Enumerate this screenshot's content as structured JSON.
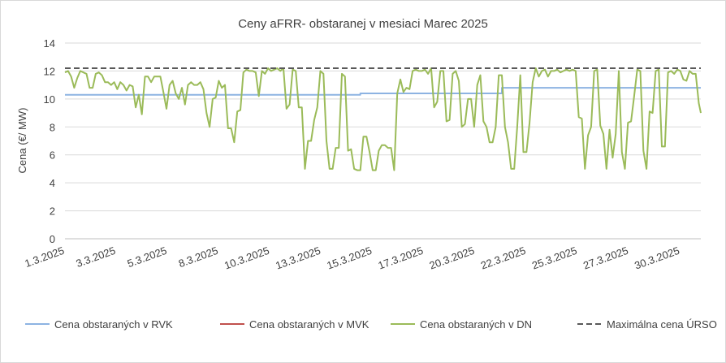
{
  "chart_data": {
    "type": "line",
    "title": "Ceny aFRR- obstaranej v mesiaci Marec 2025",
    "ylabel": "Cena (€/ MW)",
    "ylim": [
      0,
      14
    ],
    "yticks": [
      0,
      2,
      4,
      6,
      8,
      10,
      12,
      14
    ],
    "xlim": [
      1,
      32
    ],
    "xticks": [
      {
        "x": 1,
        "label": "1.3.2025"
      },
      {
        "x": 3.5,
        "label": "3.3.2025"
      },
      {
        "x": 6,
        "label": "5.3.2025"
      },
      {
        "x": 8.5,
        "label": "8.3.2025"
      },
      {
        "x": 11,
        "label": "10.3.2025"
      },
      {
        "x": 13.5,
        "label": "13.3.2025"
      },
      {
        "x": 16,
        "label": "15.3.2025"
      },
      {
        "x": 18.5,
        "label": "17.3.2025"
      },
      {
        "x": 21,
        "label": "20.3.2025"
      },
      {
        "x": 23.5,
        "label": "22.3.2025"
      },
      {
        "x": 26,
        "label": "25.3.2025"
      },
      {
        "x": 28.5,
        "label": "27.3.2025"
      },
      {
        "x": 31,
        "label": "30.3.2025"
      }
    ],
    "grid": true,
    "legend": "bottom",
    "series": [
      {
        "name": "Cena obstaraných v RVK",
        "color": "#8db3e2",
        "dash": false,
        "points": [
          [
            1,
            10.3
          ],
          [
            15.4,
            10.3
          ],
          [
            15.4,
            10.4
          ],
          [
            22.3,
            10.4
          ],
          [
            22.3,
            10.8
          ],
          [
            32,
            10.8
          ]
        ]
      },
      {
        "name": "Cena obstaraných v MVK",
        "color": "#c0504d",
        "dash": false,
        "points": []
      },
      {
        "name": "Cena obstaraných v DN",
        "color": "#9bbb59",
        "dash": false,
        "points": [
          [
            1,
            11.9
          ],
          [
            1.15,
            12.0
          ],
          [
            1.3,
            11.6
          ],
          [
            1.45,
            10.8
          ],
          [
            1.6,
            11.5
          ],
          [
            1.75,
            12.0
          ],
          [
            1.9,
            11.9
          ],
          [
            2.05,
            11.8
          ],
          [
            2.2,
            10.8
          ],
          [
            2.35,
            10.8
          ],
          [
            2.5,
            11.8
          ],
          [
            2.65,
            11.9
          ],
          [
            2.8,
            11.7
          ],
          [
            2.95,
            11.2
          ],
          [
            3.1,
            11.2
          ],
          [
            3.25,
            11.0
          ],
          [
            3.4,
            11.2
          ],
          [
            3.55,
            10.7
          ],
          [
            3.7,
            11.2
          ],
          [
            3.85,
            11.0
          ],
          [
            4.0,
            10.6
          ],
          [
            4.15,
            11.0
          ],
          [
            4.3,
            10.9
          ],
          [
            4.45,
            9.4
          ],
          [
            4.6,
            10.3
          ],
          [
            4.75,
            8.9
          ],
          [
            4.9,
            11.6
          ],
          [
            5.05,
            11.6
          ],
          [
            5.2,
            11.2
          ],
          [
            5.35,
            11.6
          ],
          [
            5.5,
            11.6
          ],
          [
            5.65,
            11.6
          ],
          [
            5.8,
            10.5
          ],
          [
            5.95,
            9.3
          ],
          [
            6.1,
            11.0
          ],
          [
            6.25,
            11.3
          ],
          [
            6.4,
            10.4
          ],
          [
            6.55,
            10.0
          ],
          [
            6.7,
            10.8
          ],
          [
            6.85,
            9.6
          ],
          [
            7.0,
            11.0
          ],
          [
            7.15,
            11.2
          ],
          [
            7.3,
            11.0
          ],
          [
            7.45,
            11.0
          ],
          [
            7.6,
            11.2
          ],
          [
            7.75,
            10.7
          ],
          [
            7.9,
            9.0
          ],
          [
            8.05,
            8.0
          ],
          [
            8.2,
            10.0
          ],
          [
            8.35,
            10.1
          ],
          [
            8.5,
            11.3
          ],
          [
            8.65,
            10.8
          ],
          [
            8.8,
            11.0
          ],
          [
            8.95,
            7.9
          ],
          [
            9.1,
            7.9
          ],
          [
            9.25,
            6.9
          ],
          [
            9.4,
            9.1
          ],
          [
            9.55,
            9.2
          ],
          [
            9.7,
            11.9
          ],
          [
            9.85,
            12.1
          ],
          [
            10.0,
            12.0
          ],
          [
            10.15,
            12.0
          ],
          [
            10.3,
            11.9
          ],
          [
            10.45,
            10.2
          ],
          [
            10.6,
            12.0
          ],
          [
            10.75,
            11.8
          ],
          [
            10.9,
            12.2
          ],
          [
            11.05,
            12.0
          ],
          [
            11.2,
            12.1
          ],
          [
            11.35,
            12.2
          ],
          [
            11.5,
            12.0
          ],
          [
            11.65,
            12.2
          ],
          [
            11.8,
            9.3
          ],
          [
            11.95,
            9.6
          ],
          [
            12.1,
            12.1
          ],
          [
            12.25,
            12.0
          ],
          [
            12.4,
            9.4
          ],
          [
            12.55,
            9.4
          ],
          [
            12.7,
            5.0
          ],
          [
            12.85,
            7.0
          ],
          [
            13.0,
            7.0
          ],
          [
            13.15,
            8.5
          ],
          [
            13.3,
            9.4
          ],
          [
            13.45,
            12.0
          ],
          [
            13.6,
            11.8
          ],
          [
            13.75,
            7.0
          ],
          [
            13.9,
            5.0
          ],
          [
            14.05,
            5.0
          ],
          [
            14.2,
            6.5
          ],
          [
            14.35,
            6.5
          ],
          [
            14.5,
            11.8
          ],
          [
            14.65,
            11.6
          ],
          [
            14.8,
            6.3
          ],
          [
            14.95,
            6.4
          ],
          [
            15.1,
            5.0
          ],
          [
            15.25,
            4.9
          ],
          [
            15.4,
            4.9
          ],
          [
            15.55,
            7.3
          ],
          [
            15.7,
            7.3
          ],
          [
            15.85,
            6.2
          ],
          [
            16.0,
            4.9
          ],
          [
            16.15,
            4.9
          ],
          [
            16.3,
            6.3
          ],
          [
            16.45,
            6.7
          ],
          [
            16.6,
            6.7
          ],
          [
            16.75,
            6.5
          ],
          [
            16.9,
            6.5
          ],
          [
            17.05,
            4.9
          ],
          [
            17.2,
            10.4
          ],
          [
            17.35,
            11.4
          ],
          [
            17.5,
            10.5
          ],
          [
            17.65,
            10.8
          ],
          [
            17.8,
            10.7
          ],
          [
            17.95,
            12.0
          ],
          [
            18.1,
            12.1
          ],
          [
            18.25,
            12.0
          ],
          [
            18.4,
            12.0
          ],
          [
            18.55,
            12.1
          ],
          [
            18.7,
            11.8
          ],
          [
            18.85,
            12.2
          ],
          [
            19.0,
            9.4
          ],
          [
            19.15,
            9.8
          ],
          [
            19.3,
            12.0
          ],
          [
            19.45,
            12.0
          ],
          [
            19.6,
            8.4
          ],
          [
            19.75,
            8.5
          ],
          [
            19.9,
            11.8
          ],
          [
            20.05,
            12.0
          ],
          [
            20.2,
            11.3
          ],
          [
            20.35,
            8.0
          ],
          [
            20.5,
            8.2
          ],
          [
            20.65,
            10.0
          ],
          [
            20.8,
            10.0
          ],
          [
            20.95,
            8.0
          ],
          [
            21.1,
            11.0
          ],
          [
            21.25,
            11.7
          ],
          [
            21.4,
            8.4
          ],
          [
            21.55,
            8.0
          ],
          [
            21.7,
            6.9
          ],
          [
            21.85,
            6.9
          ],
          [
            22.0,
            8.0
          ],
          [
            22.15,
            11.7
          ],
          [
            22.3,
            11.7
          ],
          [
            22.45,
            8.0
          ],
          [
            22.6,
            6.9
          ],
          [
            22.75,
            5.0
          ],
          [
            22.9,
            5.0
          ],
          [
            23.05,
            8.0
          ],
          [
            23.2,
            11.7
          ],
          [
            23.35,
            6.2
          ],
          [
            23.5,
            6.2
          ],
          [
            23.65,
            8.3
          ],
          [
            23.8,
            11.2
          ],
          [
            23.95,
            12.2
          ],
          [
            24.1,
            11.6
          ],
          [
            24.25,
            12.0
          ],
          [
            24.4,
            12.1
          ],
          [
            24.55,
            11.6
          ],
          [
            24.7,
            12.0
          ],
          [
            24.85,
            12.0
          ],
          [
            25.0,
            12.1
          ],
          [
            25.15,
            11.9
          ],
          [
            25.3,
            12.0
          ],
          [
            25.45,
            12.1
          ],
          [
            25.6,
            12.0
          ],
          [
            25.75,
            12.1
          ],
          [
            25.9,
            12.0
          ],
          [
            26.05,
            8.7
          ],
          [
            26.2,
            8.6
          ],
          [
            26.35,
            5.0
          ],
          [
            26.5,
            7.4
          ],
          [
            26.65,
            8.0
          ],
          [
            26.8,
            12.0
          ],
          [
            26.95,
            12.1
          ],
          [
            27.1,
            8.1
          ],
          [
            27.25,
            7.5
          ],
          [
            27.4,
            5.0
          ],
          [
            27.55,
            7.8
          ],
          [
            27.7,
            5.8
          ],
          [
            27.85,
            7.5
          ],
          [
            28.0,
            12.0
          ],
          [
            28.15,
            6.2
          ],
          [
            28.3,
            5.0
          ],
          [
            28.45,
            8.3
          ],
          [
            28.6,
            8.4
          ],
          [
            28.75,
            10.2
          ],
          [
            28.9,
            12.1
          ],
          [
            29.05,
            12.0
          ],
          [
            29.2,
            6.3
          ],
          [
            29.35,
            5.0
          ],
          [
            29.5,
            9.1
          ],
          [
            29.65,
            9.0
          ],
          [
            29.8,
            12.0
          ],
          [
            29.95,
            12.1
          ],
          [
            30.1,
            6.6
          ],
          [
            30.25,
            6.6
          ],
          [
            30.4,
            11.9
          ],
          [
            30.55,
            12.0
          ],
          [
            30.7,
            11.8
          ],
          [
            30.85,
            12.1
          ],
          [
            31.0,
            12.0
          ],
          [
            31.15,
            11.4
          ],
          [
            31.3,
            11.3
          ],
          [
            31.45,
            12.0
          ],
          [
            31.6,
            11.8
          ],
          [
            31.75,
            11.8
          ],
          [
            31.9,
            9.7
          ],
          [
            32.0,
            9.0
          ]
        ]
      },
      {
        "name": "Maximálna cena ÚRSO",
        "color": "#595959",
        "dash": true,
        "points": [
          [
            1,
            12.2
          ],
          [
            32,
            12.2
          ]
        ]
      }
    ]
  }
}
